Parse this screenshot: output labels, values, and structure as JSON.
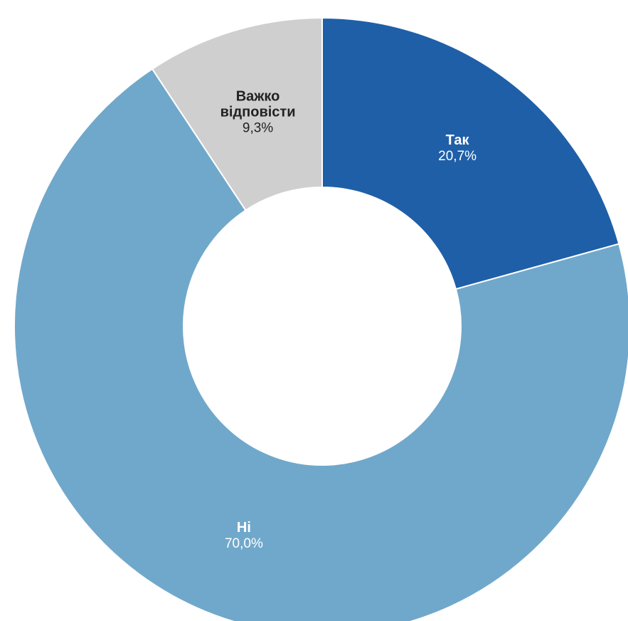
{
  "chart_data": {
    "type": "pie",
    "donut": true,
    "title": "",
    "legend": "none",
    "slices": [
      {
        "label": "Так",
        "value": 20.7,
        "value_label": "20,7%",
        "color": "#1f5fa8",
        "label_color": "#ffffff",
        "label_lines": [
          "Так"
        ]
      },
      {
        "label": "Ні",
        "value": 70.0,
        "value_label": "70,0%",
        "color": "#70a8cb",
        "label_color": "#ffffff",
        "label_lines": [
          "Ні"
        ]
      },
      {
        "label": "Важко відповісти",
        "value": 9.3,
        "value_label": "9,3%",
        "color": "#cfcfcf",
        "label_color": "#222222",
        "label_lines": [
          "Важко",
          "відповісти"
        ]
      }
    ]
  }
}
